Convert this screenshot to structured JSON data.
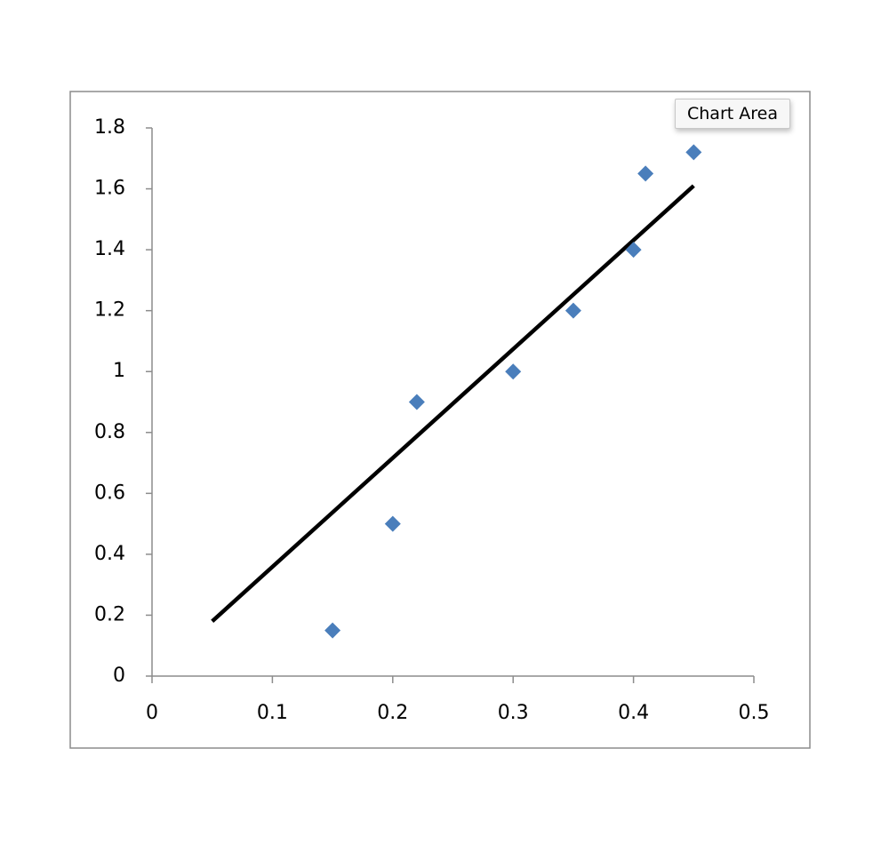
{
  "chart_data": {
    "type": "scatter",
    "tooltip": "Chart Area",
    "x": [
      0.15,
      0.2,
      0.22,
      0.3,
      0.35,
      0.4,
      0.41,
      0.45
    ],
    "values": [
      0.15,
      0.5,
      0.9,
      1.0,
      1.2,
      1.4,
      1.65,
      1.72
    ],
    "color": "#4a7ebb",
    "trendline": {
      "x": [
        0.05,
        0.45
      ],
      "values": [
        0.18,
        1.61
      ],
      "color": "#000000"
    },
    "xlim": [
      0,
      0.5
    ],
    "xticks": [
      0,
      0.1,
      0.2,
      0.3,
      0.4,
      0.5
    ],
    "ylim": [
      0,
      1.8
    ],
    "yticks": [
      0,
      0.2,
      0.4,
      0.6,
      0.8,
      1,
      1.2,
      1.4,
      1.6,
      1.8
    ],
    "grid": false
  }
}
